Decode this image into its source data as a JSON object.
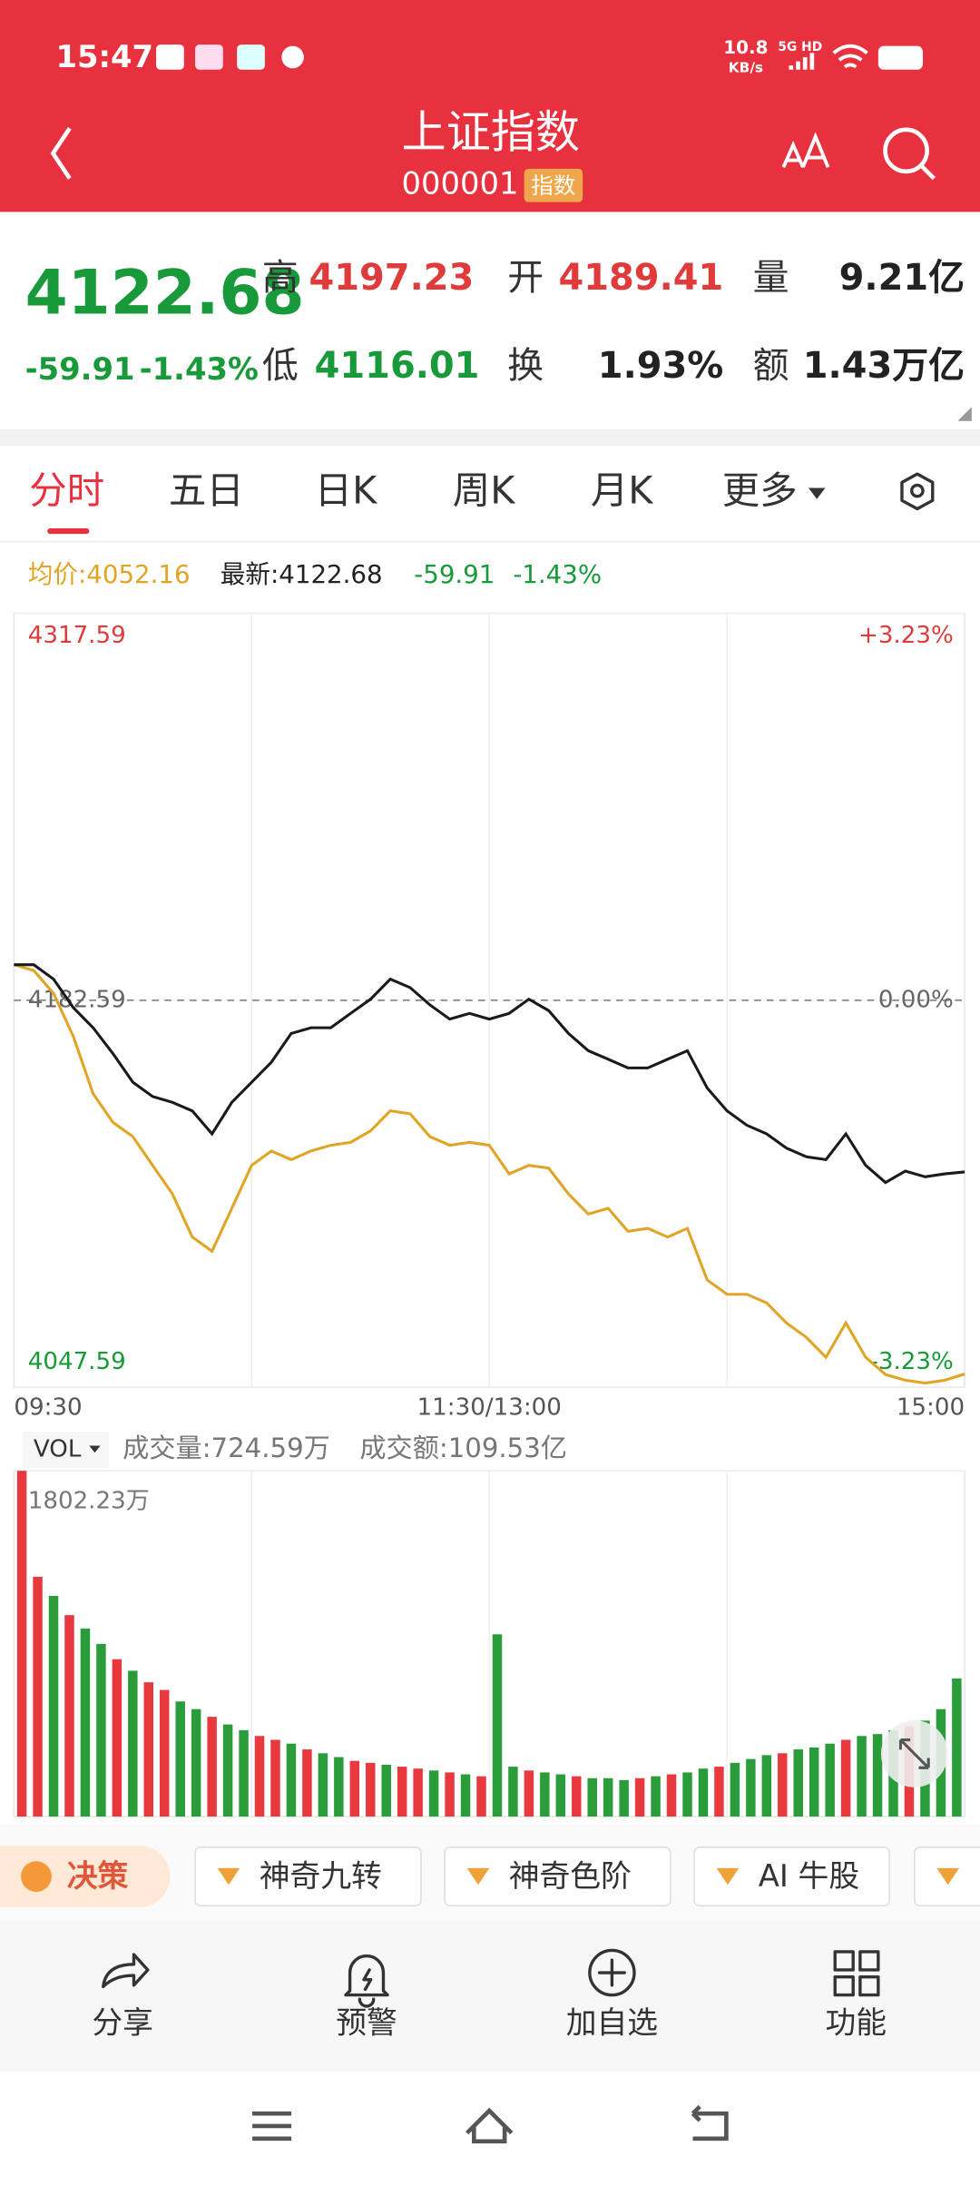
{
  "status_bar": {
    "time": "15:47",
    "net_speed": "10.8",
    "net_unit": "KB/s",
    "signal": "5G HD"
  },
  "header": {
    "title": "上证指数",
    "code": "000001",
    "badge": "指数"
  },
  "quote": {
    "price": "4122.68",
    "change": "-59.91",
    "change_pct": "-1.43%",
    "fields": [
      {
        "label": "高",
        "value": "4197.23"
      },
      {
        "label": "开",
        "value": "4189.41"
      },
      {
        "label": "量",
        "value": "9.21亿"
      },
      {
        "label": "低",
        "value": "4116.01"
      },
      {
        "label": "换",
        "value": "1.93%"
      },
      {
        "label": "额",
        "value": "1.43万亿"
      }
    ]
  },
  "tabs": [
    "分时",
    "五日",
    "日K",
    "周K",
    "月K",
    "更多"
  ],
  "chart_info": {
    "avg": "均价:4052.16",
    "latest": "最新:4122.68",
    "change": "-59.91",
    "change_pct": "-1.43%"
  },
  "volume_info": {
    "selector": "VOL",
    "volume": "成交量:724.59万",
    "amount": "成交额:109.53亿"
  },
  "tools": [
    "决策",
    "神奇九转",
    "神奇色阶",
    "AI 牛股"
  ],
  "actions": [
    "分享",
    "预警",
    "加自选",
    "功能"
  ],
  "chart_data": [
    {
      "type": "line",
      "categories": [
        "09:30",
        null,
        null,
        null,
        null,
        null,
        null,
        null,
        null,
        null,
        null,
        null,
        null,
        null,
        null,
        null,
        null,
        null,
        null,
        null,
        null,
        null,
        null,
        null,
        "11:30/13:00",
        null,
        null,
        null,
        null,
        null,
        null,
        null,
        null,
        null,
        null,
        null,
        null,
        null,
        null,
        null,
        null,
        null,
        null,
        null,
        null,
        null,
        null,
        null,
        "15:00"
      ],
      "series": [
        {
          "color": "#1a1a1a",
          "values": [
            4195,
            4195,
            4190,
            4180,
            4173,
            4164,
            4154,
            4149,
            4147,
            4144,
            4136,
            4147,
            4154,
            4161,
            4171,
            4173,
            4173,
            4178,
            4183,
            4190,
            4187,
            4181,
            4176,
            4178,
            4176,
            4178,
            4183,
            4179,
            4171,
            4165,
            4162,
            4159,
            4159,
            4162,
            4165,
            4152,
            4144,
            4139,
            4136,
            4131,
            4128,
            4127,
            4136,
            4125,
            4119,
            4123,
            4121,
            4122,
            4122.68
          ]
        },
        {
          "color": "#e0a526",
          "values": [
            4195,
            4193,
            4185,
            4170,
            4150,
            4140,
            4135,
            4125,
            4115,
            4100,
            4095,
            4110,
            4125,
            4130,
            4127,
            4130,
            4132,
            4133,
            4137,
            4144,
            4143,
            4135,
            4132,
            4133,
            4132,
            4122,
            4125,
            4124,
            4115,
            4108,
            4110,
            4102,
            4103,
            4100,
            4103,
            4085,
            4080,
            4080,
            4077,
            4070,
            4065,
            4058,
            4070,
            4058,
            4052,
            4050,
            4049,
            4050,
            4052.16
          ]
        }
      ],
      "ylim": [
        4047.59,
        4317.59
      ],
      "yticks": [
        4047.59,
        4182.59,
        4317.59
      ],
      "y2lim": [
        -3.23,
        3.23
      ],
      "y2ticks": [
        {
          "value": -3.23,
          "label": "-3.23%"
        },
        {
          "value": 0,
          "label": "0.00%"
        },
        {
          "value": 3.23,
          "label": "+3.23%"
        }
      ],
      "grid": true
    },
    {
      "type": "bar",
      "values": [
        1802.23,
        1250,
        1150,
        1050,
        980,
        900,
        820,
        760,
        700,
        660,
        600,
        560,
        520,
        480,
        450,
        420,
        400,
        380,
        350,
        330,
        310,
        290,
        280,
        270,
        260,
        250,
        240,
        230,
        220,
        210,
        950,
        260,
        240,
        230,
        220,
        210,
        200,
        200,
        190,
        200,
        210,
        220,
        230,
        250,
        260,
        280,
        300,
        320,
        330,
        350,
        360,
        380,
        400,
        420,
        430,
        450,
        470,
        500,
        560,
        720
      ],
      "colors": [
        "#e8393f",
        "#e8393f",
        "#2a9d3a",
        "#e8393f",
        "#2a9d3a",
        "#2a9d3a",
        "#e8393f",
        "#2a9d3a",
        "#e8393f",
        "#e8393f",
        "#2a9d3a",
        "#2a9d3a",
        "#e8393f",
        "#2a9d3a",
        "#2a9d3a",
        "#e8393f",
        "#e8393f",
        "#2a9d3a",
        "#e8393f",
        "#2a9d3a",
        "#2a9d3a",
        "#e8393f",
        "#e8393f",
        "#2a9d3a",
        "#e8393f",
        "#e8393f",
        "#2a9d3a",
        "#e8393f",
        "#2a9d3a",
        "#e8393f",
        "#2a9d3a",
        "#2a9d3a",
        "#e8393f",
        "#2a9d3a",
        "#2a9d3a",
        "#e8393f",
        "#2a9d3a",
        "#2a9d3a",
        "#2a9d3a",
        "#e8393f",
        "#2a9d3a",
        "#e8393f",
        "#2a9d3a",
        "#2a9d3a",
        "#e8393f",
        "#2a9d3a",
        "#2a9d3a",
        "#2a9d3a",
        "#e8393f",
        "#2a9d3a",
        "#2a9d3a",
        "#2a9d3a",
        "#e8393f",
        "#2a9d3a",
        "#2a9d3a",
        "#2a9d3a",
        "#e8393f",
        "#2a9d3a",
        "#2a9d3a",
        "#2a9d3a"
      ],
      "ylim": [
        0,
        1802.23
      ],
      "yticks": [
        {
          "value": 1802.23,
          "label": "1802.23万"
        }
      ],
      "grid": true
    }
  ]
}
